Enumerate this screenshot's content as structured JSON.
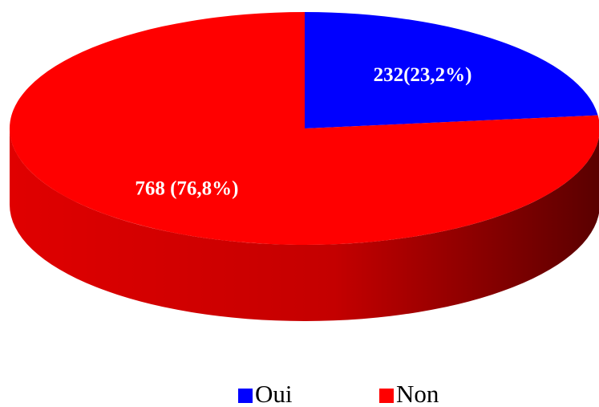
{
  "chart_data": {
    "type": "pie",
    "categories": [
      "Oui",
      "Non"
    ],
    "values": [
      232,
      768
    ],
    "value_labels": [
      "232(23,2%)",
      "768 (76,8%)"
    ],
    "colors": [
      "#0000ff",
      "#ff0000"
    ],
    "legend": "bottom"
  }
}
